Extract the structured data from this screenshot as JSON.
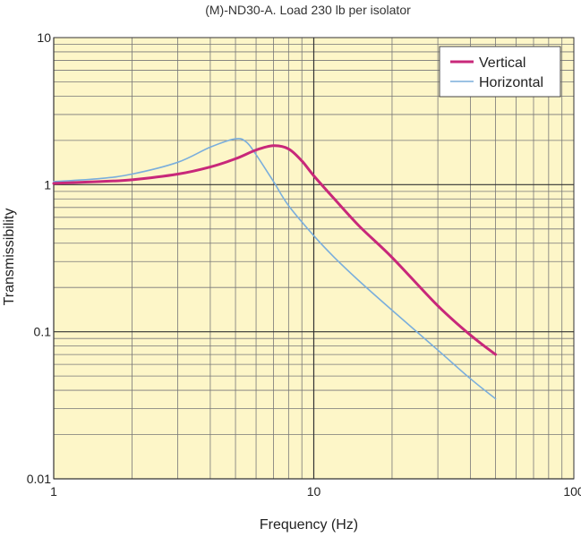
{
  "chart_data": {
    "type": "line",
    "title": "(M)-ND30-A. Load 230 lb per isolator",
    "xlabel": "Frequency (Hz)",
    "ylabel": "Transmissibility",
    "x_scale": "log",
    "y_scale": "log",
    "xlim": [
      1,
      100
    ],
    "ylim": [
      0.01,
      10
    ],
    "x_ticks": [
      "1",
      "10",
      "100"
    ],
    "y_ticks": [
      "0.01",
      "0.1",
      "1",
      "10"
    ],
    "grid": true,
    "legend_position": "top-right",
    "colors": {
      "plot_background": "#fdf6c8",
      "grid_major": "#333333",
      "grid_minor": "#777777"
    },
    "series": [
      {
        "name": "Vertical",
        "color": "#c8287a",
        "x": [
          1,
          1.5,
          2,
          3,
          4,
          5,
          6,
          7,
          8,
          9,
          10,
          12,
          15,
          20,
          30,
          40,
          50
        ],
        "y": [
          1.02,
          1.05,
          1.08,
          1.18,
          1.32,
          1.5,
          1.72,
          1.84,
          1.75,
          1.45,
          1.15,
          0.8,
          0.52,
          0.32,
          0.15,
          0.095,
          0.07
        ]
      },
      {
        "name": "Horizontal",
        "color": "#7aaedc",
        "x": [
          1,
          1.5,
          2,
          3,
          4,
          5,
          5.5,
          6,
          7,
          8,
          10,
          12,
          15,
          20,
          30,
          40,
          50
        ],
        "y": [
          1.05,
          1.1,
          1.18,
          1.42,
          1.8,
          2.05,
          1.95,
          1.6,
          1.05,
          0.72,
          0.45,
          0.32,
          0.22,
          0.14,
          0.075,
          0.048,
          0.035
        ]
      }
    ]
  }
}
